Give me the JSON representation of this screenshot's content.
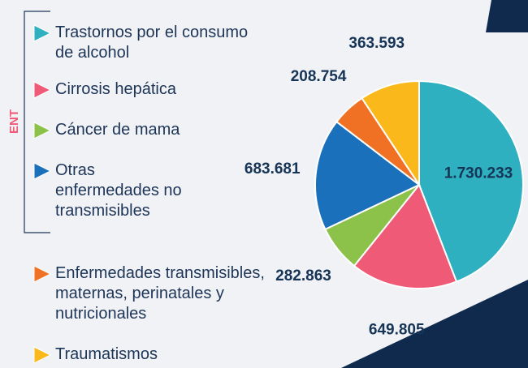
{
  "chart_data": {
    "type": "pie",
    "group_label": "ENT",
    "categories": [
      "Trastornos por el consumo de alcohol",
      "Cirrosis hepática",
      "Cáncer de mama",
      "Otras enfermedades no transmisibles",
      "Enfermedades transmisibles, maternas, perinatales y nutricionales",
      "Traumatismos"
    ],
    "values": [
      1730233,
      649805,
      282863,
      683681,
      208754,
      363593
    ],
    "value_labels": [
      "1.730.233",
      "649.805",
      "282.863",
      "683.681",
      "208.754",
      "363.593"
    ],
    "colors": [
      "#2fb0c1",
      "#ef5b77",
      "#8cc24a",
      "#1a70ba",
      "#f07124",
      "#fbb81b"
    ]
  }
}
